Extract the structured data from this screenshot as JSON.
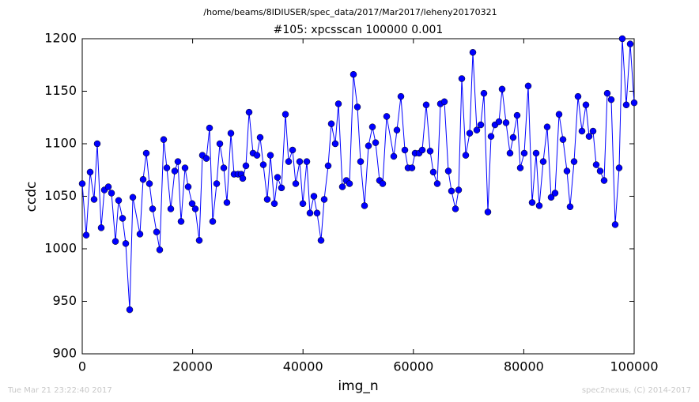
{
  "chart_data": {
    "type": "line",
    "suptitle": "/home/beams/8IDIUSER/spec_data/2017/Mar2017/leheny20170321",
    "title": "#105: xpcsscan 100000 0.001",
    "xlabel": "img_n",
    "ylabel": "ccdc",
    "annotations": [
      "Tue Mar 21 23:22:40 2017",
      "spec2nexus, (C) 2014-2017"
    ],
    "xlim": [
      0,
      100000
    ],
    "ylim": [
      900,
      1200
    ],
    "xticks": [
      0,
      20000,
      40000,
      60000,
      80000,
      100000
    ],
    "yticks": [
      900,
      950,
      1000,
      1050,
      1100,
      1150,
      1200
    ],
    "grid": false,
    "x": [
      0,
      716,
      1433,
      2149,
      2722,
      3438,
      4011,
      4728,
      5301,
      6017,
      6590,
      7307,
      7880,
      8596,
      9169,
      10458,
      11032,
      11605,
      12178,
      12751,
      13467,
      14040,
      14756,
      15330,
      16046,
      16762,
      17335,
      17908,
      18625,
      19198,
      19914,
      20487,
      21203,
      21777,
      22493,
      23066,
      23639,
      24355,
      24928,
      25645,
      26218,
      26934,
      27507,
      28223,
      28797,
      29083,
      29656,
      30229,
      30946,
      31662,
      32235,
      32808,
      33524,
      34097,
      34814,
      35387,
      36103,
      36820,
      37393,
      38109,
      38682,
      39399,
      39972,
      40688,
      41261,
      41977,
      42550,
      43267,
      43840,
      44556,
      45129,
      45845,
      46418,
      47135,
      47851,
      48424,
      49140,
      49857,
      50430,
      51146,
      51862,
      52579,
      53152,
      53868,
      54441,
      55158,
      56447,
      57020,
      57736,
      58453,
      59026,
      59742,
      60315,
      61032,
      61605,
      62321,
      63037,
      63610,
      64327,
      64900,
      65616,
      66332,
      66905,
      67622,
      68195,
      68768,
      69484,
      70201,
      70774,
      71490,
      72206,
      72779,
      73496,
      74069,
      74785,
      75501,
      76074,
      76791,
      77507,
      78080,
      78797,
      79370,
      80086,
      80802,
      81519,
      82235,
      82808,
      83524,
      84241,
      84957,
      85673,
      86390,
      87106,
      87822,
      88395,
      89112,
      89828,
      90544,
      91261,
      91834,
      92550,
      93123,
      93840,
      94556,
      95129,
      95845,
      96562,
      97278,
      97851,
      98567,
      99284,
      100000
    ],
    "series": [
      {
        "name": "ccdc",
        "color": "#0000ff",
        "values": [
          1062,
          1013,
          1073,
          1047,
          1100,
          1020,
          1056,
          1059,
          1053,
          1007,
          1046,
          1029,
          1005,
          942,
          1049,
          1014,
          1066,
          1091,
          1062,
          1038,
          1016,
          999,
          1104,
          1077,
          1038,
          1074,
          1083,
          1026,
          1077,
          1059,
          1043,
          1038,
          1008,
          1089,
          1086,
          1115,
          1026,
          1062,
          1100,
          1077,
          1044,
          1110,
          1071,
          1071,
          1071,
          1067,
          1079,
          1130,
          1091,
          1089,
          1106,
          1080,
          1047,
          1089,
          1043,
          1068,
          1058,
          1128,
          1083,
          1094,
          1062,
          1083,
          1043,
          1083,
          1034,
          1050,
          1034,
          1008,
          1047,
          1079,
          1119,
          1100,
          1138,
          1059,
          1065,
          1062,
          1166,
          1135,
          1083,
          1041,
          1098,
          1116,
          1101,
          1065,
          1062,
          1126,
          1088,
          1113,
          1145,
          1094,
          1077,
          1077,
          1091,
          1091,
          1094,
          1137,
          1093,
          1073,
          1062,
          1138,
          1140,
          1074,
          1055,
          1038,
          1056,
          1162,
          1089,
          1110,
          1187,
          1113,
          1118,
          1148,
          1035,
          1107,
          1118,
          1121,
          1152,
          1120,
          1091,
          1106,
          1127,
          1077,
          1091,
          1155,
          1044,
          1091,
          1041,
          1083,
          1116,
          1049,
          1053,
          1128,
          1104,
          1074,
          1040,
          1083,
          1145,
          1112,
          1137,
          1107,
          1112,
          1080,
          1074,
          1065,
          1148,
          1142,
          1023,
          1077,
          1200,
          1137,
          1195,
          1139
        ]
      }
    ]
  }
}
